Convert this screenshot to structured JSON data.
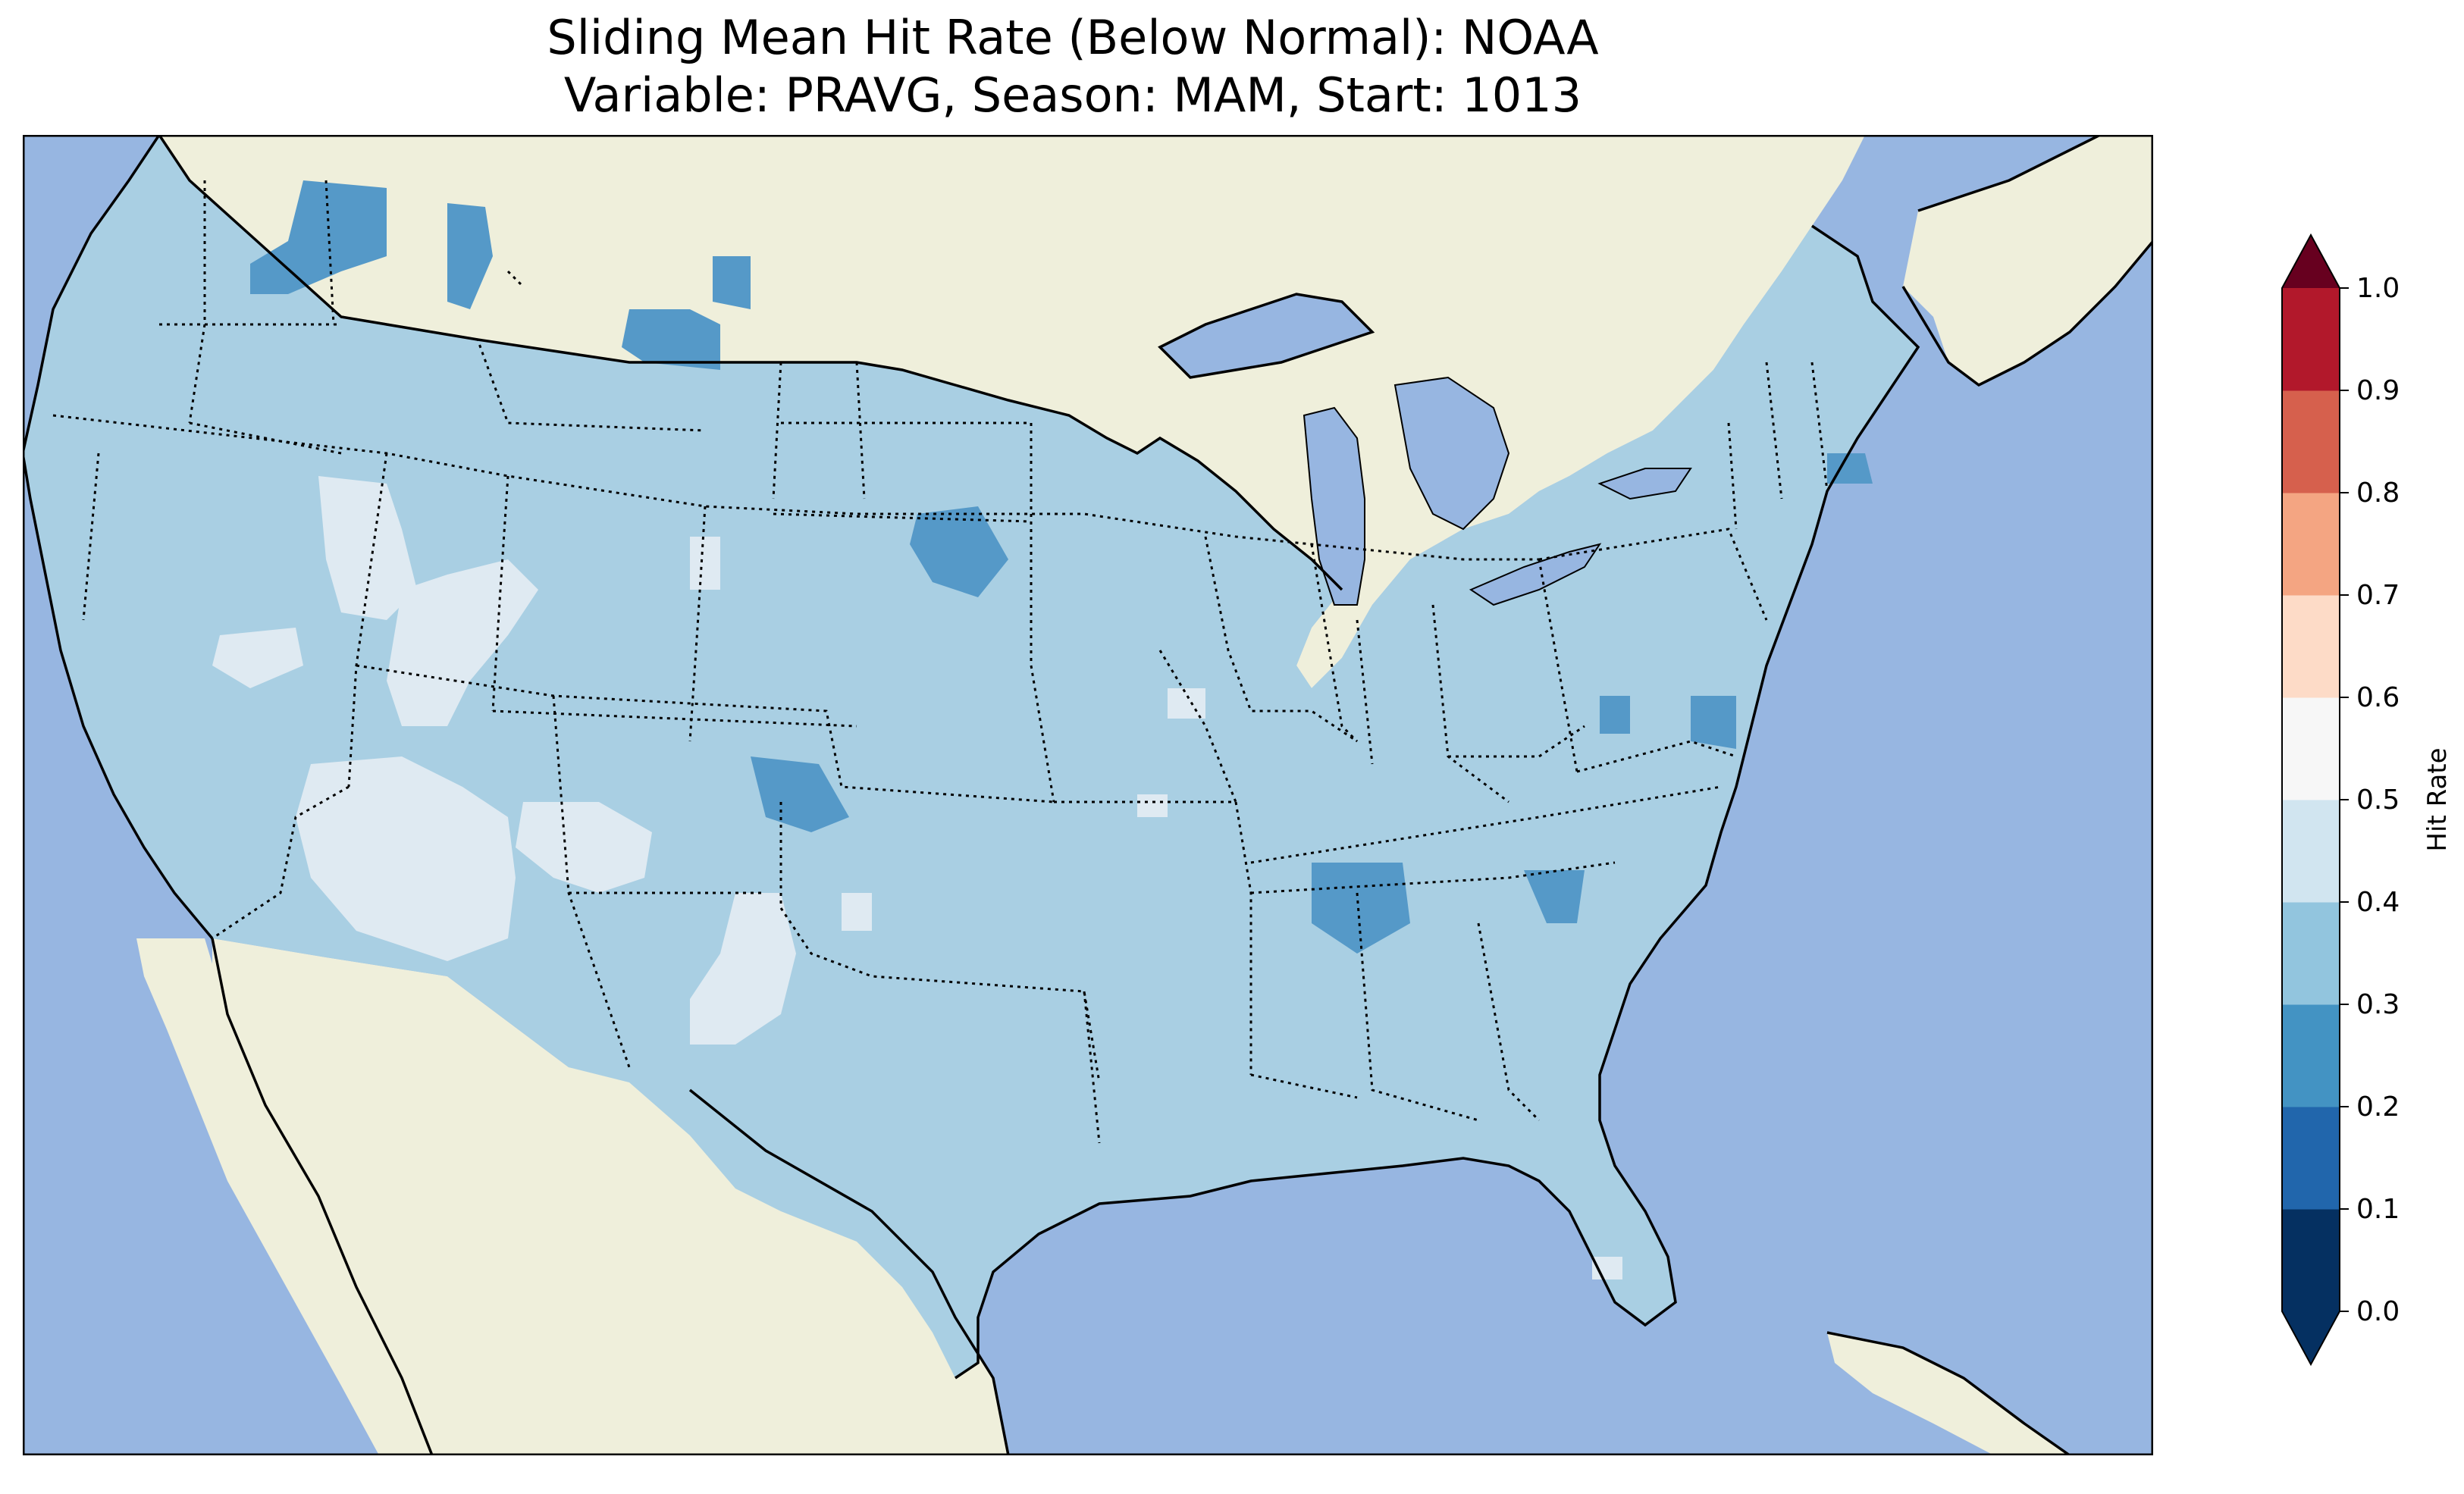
{
  "title": {
    "line1": "Sliding Mean Hit Rate (Below Normal): NOAA",
    "line2": "Variable: PRAVG, Season: MAM, Start: 1013"
  },
  "colorbar": {
    "label": "Hit Rate",
    "ticks": [
      "0.0",
      "0.1",
      "0.2",
      "0.3",
      "0.4",
      "0.5",
      "0.6",
      "0.7",
      "0.8",
      "0.9",
      "1.0"
    ],
    "levels": [
      0.0,
      0.1,
      0.2,
      0.3,
      0.4,
      0.5,
      0.6,
      0.7,
      0.8,
      0.9,
      1.0
    ],
    "colors": [
      "#053061",
      "#2166ac",
      "#4393c3",
      "#92c5de",
      "#d1e5f0",
      "#f7f7f7",
      "#fddbc7",
      "#f4a582",
      "#d6604d",
      "#b2182b",
      "#67001f"
    ],
    "extend": "both"
  },
  "map": {
    "ocean_color": "#97b6e1",
    "land_color": "#efefdb",
    "hit_rate_color_0_2_0_3": "#5599c8",
    "hit_rate_color_0_3_0_4": "#a9cfe3",
    "hit_rate_color_0_4_0_5": "#dfeaf2"
  }
}
